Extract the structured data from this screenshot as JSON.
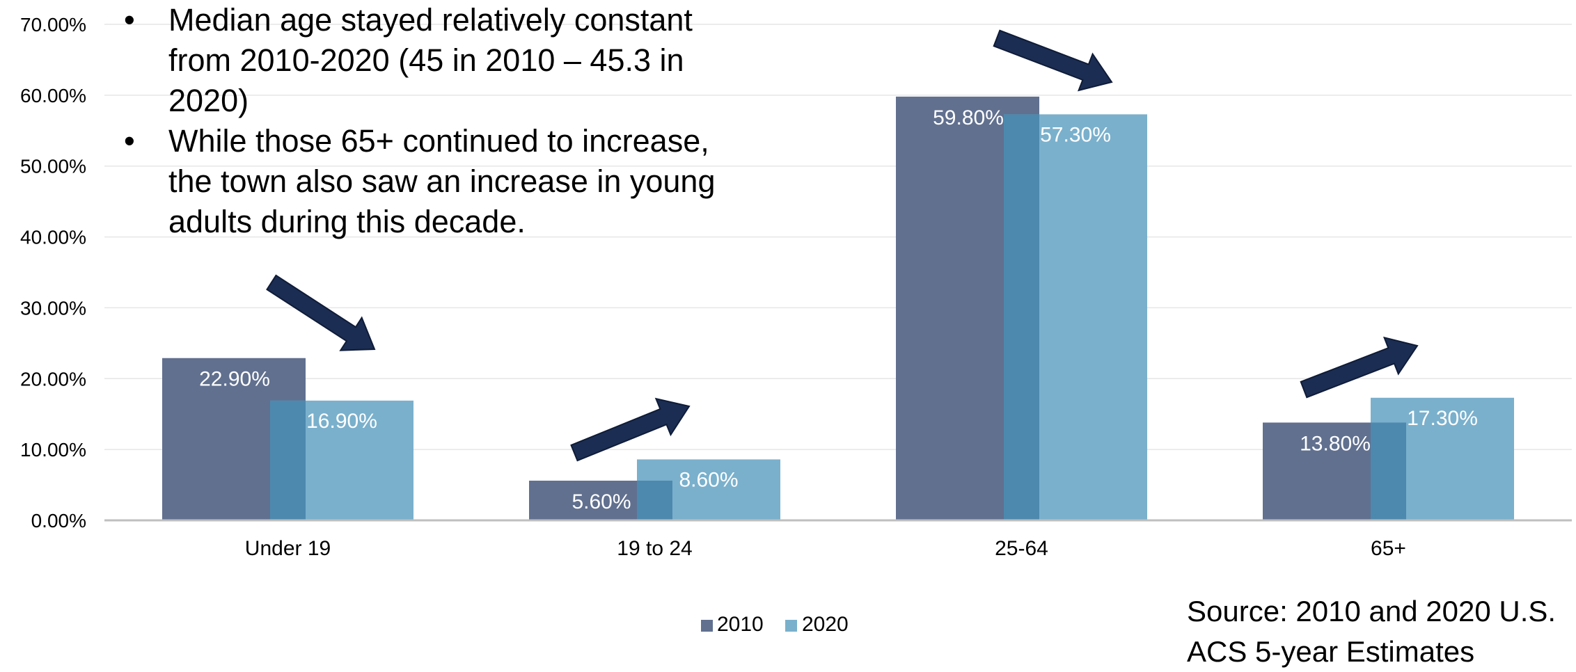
{
  "bullets": [
    "Median age stayed relatively constant from 2010-2020 (45 in 2010 – 45.3 in 2020)",
    "While those 65+ continued to increase, the town also saw an increase in young adults during this decade."
  ],
  "source": {
    "line1": "Source: 2010 and 2020 U.S.",
    "line2": "ACS 5-year Estimates"
  },
  "colors": {
    "series_2010": "#61708f",
    "series_2020": "#7ab0cc",
    "overlap": "#4d89ae",
    "arrow_fill": "#1b2d52",
    "grid": "#e6e6e6",
    "axis": "#bfbfbf"
  },
  "chart_data": {
    "type": "bar",
    "categories": [
      "Under 19",
      "19 to 24",
      "25-64",
      "65+"
    ],
    "series": [
      {
        "name": "2010",
        "values": [
          22.9,
          5.6,
          59.8,
          13.8
        ],
        "labels": [
          "22.90%",
          "5.60%",
          "59.80%",
          "13.80%"
        ]
      },
      {
        "name": "2020",
        "values": [
          16.9,
          8.6,
          57.3,
          17.3
        ],
        "labels": [
          "16.90%",
          "8.60%",
          "57.30%",
          "17.30%"
        ]
      }
    ],
    "ylim": [
      0,
      70
    ],
    "yticks": [
      0,
      10,
      20,
      30,
      40,
      50,
      60,
      70
    ],
    "ytick_labels": [
      "0.00%",
      "10.00%",
      "20.00%",
      "30.00%",
      "40.00%",
      "50.00%",
      "60.00%",
      "70.00%"
    ],
    "grid": true,
    "legend": "bottom-center",
    "title": "",
    "xlabel": "",
    "ylabel": "",
    "annotations": [
      "arrow-down",
      "arrow-up",
      "arrow-down",
      "arrow-up"
    ]
  }
}
